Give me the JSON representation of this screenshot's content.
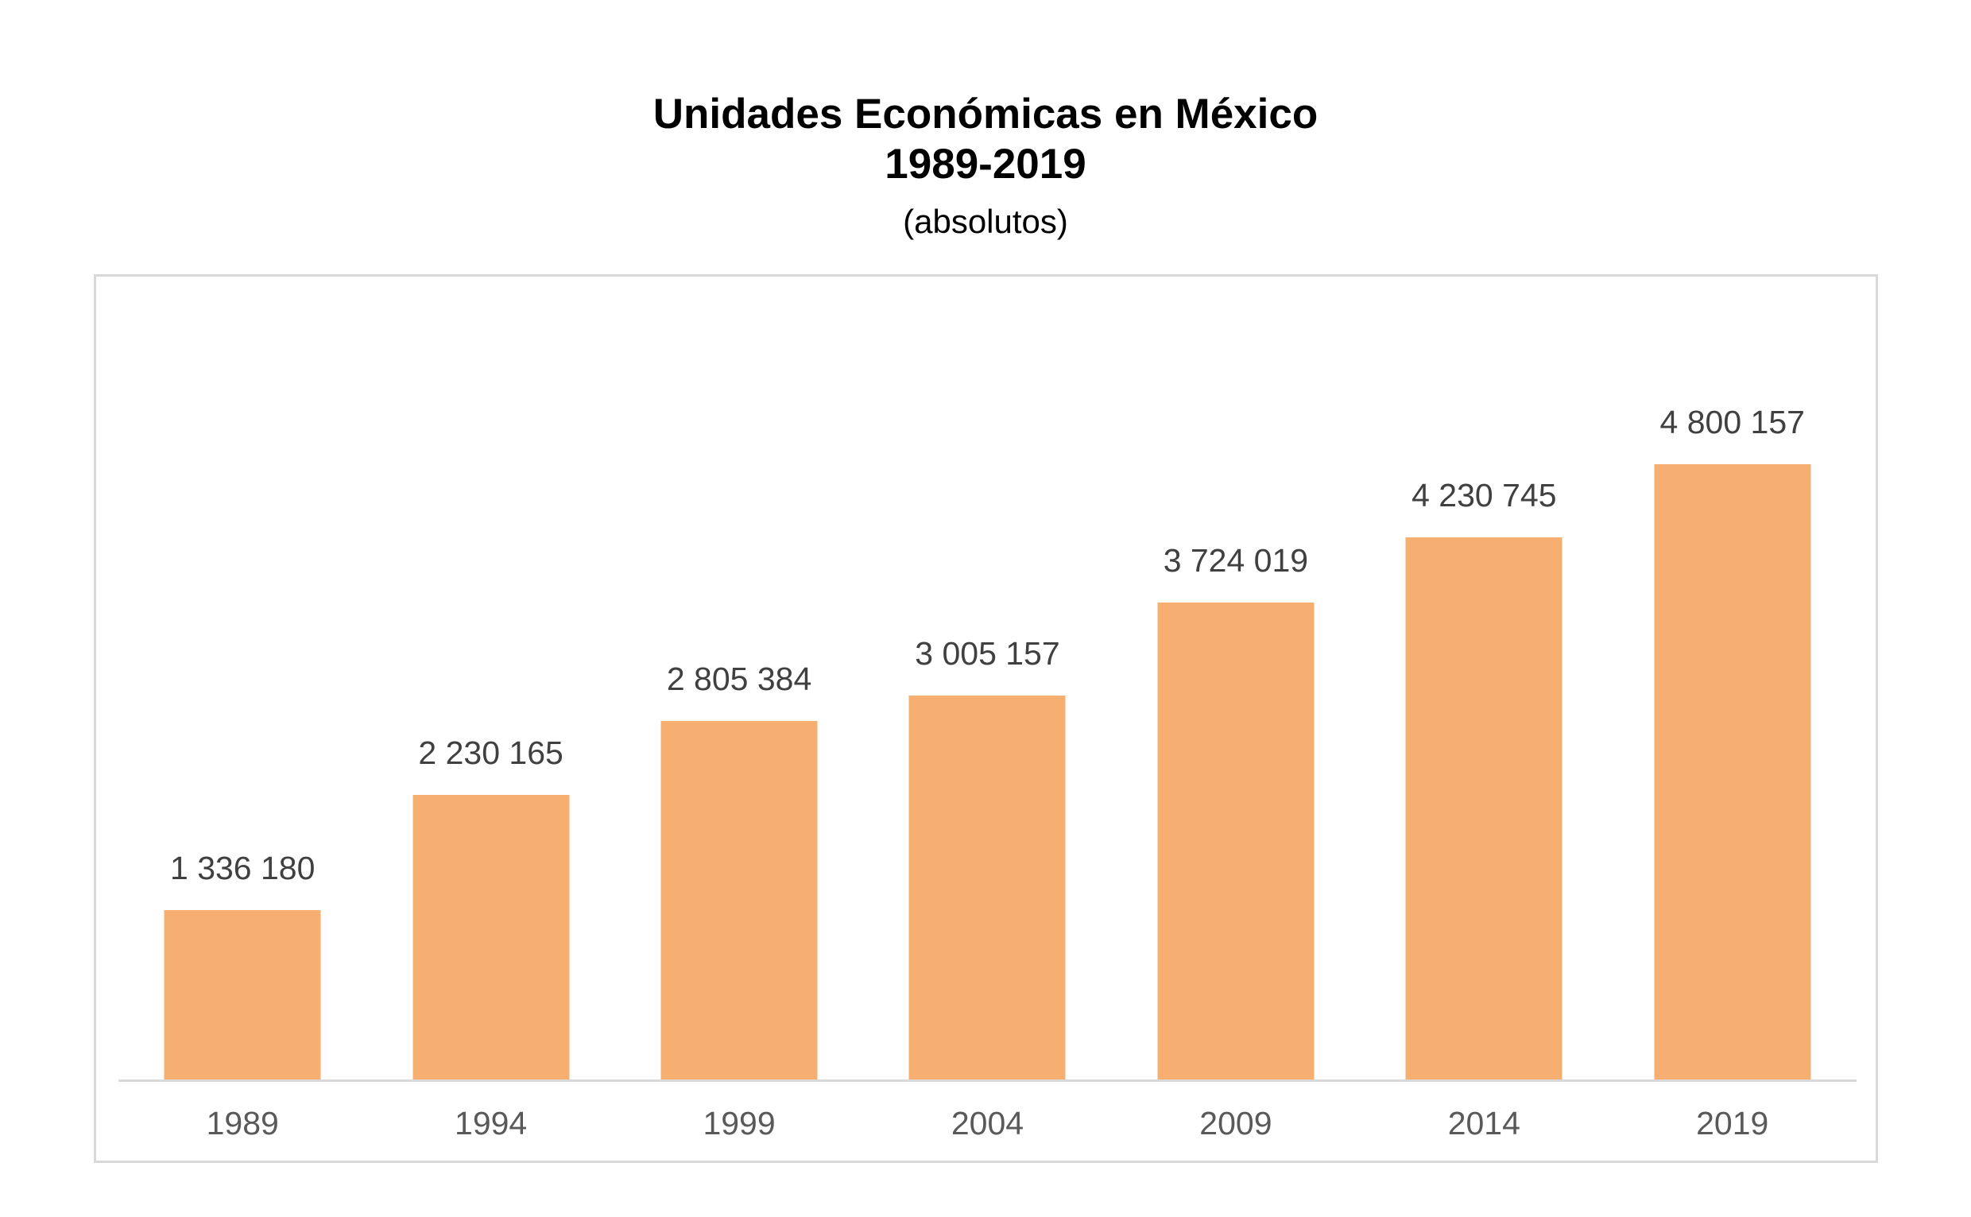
{
  "title": {
    "line1": "Unidades Económicas en México",
    "line2": "1989-2019",
    "subtitle": "(absolutos)"
  },
  "chart_data": {
    "type": "bar",
    "title": "Unidades Económicas en México 1989-2019 (absolutos)",
    "categories": [
      "1989",
      "1994",
      "1999",
      "2004",
      "2009",
      "2014",
      "2019"
    ],
    "values": [
      1336180,
      2230165,
      2805384,
      3005157,
      3724019,
      4230745,
      4800157
    ],
    "value_labels": [
      "1 336 180",
      "2 230 165",
      "2 805 384",
      "3 005 157",
      "3 724 019",
      "4 230 745",
      "4 800 157"
    ],
    "xlabel": "",
    "ylabel": "",
    "ylim": [
      0,
      6000000
    ],
    "grid": false,
    "legend": false,
    "y_axis_visible": false,
    "colors": {
      "bar_fill": "#F6AE71",
      "value_label": "#404040",
      "category_label": "#595959",
      "axis_line": "#D9D9D9",
      "panel_border": "#D9D9D9",
      "title_text": "#000000"
    }
  }
}
